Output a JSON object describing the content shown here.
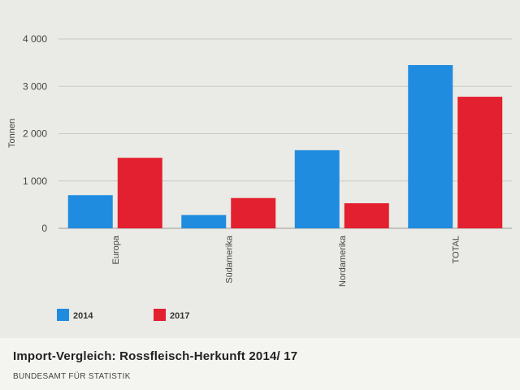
{
  "chart_data": {
    "type": "bar",
    "title": "Import-Vergleich: Rossfleisch-Herkunft 2014/ 17",
    "xlabel": "",
    "ylabel": "Tonnen",
    "ylim": [
      0,
      4000
    ],
    "yticks": [
      0,
      1000,
      2000,
      3000,
      4000
    ],
    "ytick_labels": [
      "0",
      "1 000",
      "2 000",
      "3 000",
      "4 000"
    ],
    "categories": [
      "Europa",
      "Südamerika",
      "Nordamerika",
      "TOTAL"
    ],
    "series": [
      {
        "name": "2014",
        "color": "#1f8ce0",
        "values": [
          700,
          280,
          1650,
          3450
        ]
      },
      {
        "name": "2017",
        "color": "#e3202f",
        "values": [
          1490,
          640,
          530,
          2780
        ]
      }
    ],
    "grid": true,
    "legend_position": "bottom-left"
  },
  "caption": {
    "title": "Import-Vergleich: Rossfleisch-Herkunft 2014/ 17",
    "source": "BUNDESAMT FÜR STATISTIK"
  }
}
